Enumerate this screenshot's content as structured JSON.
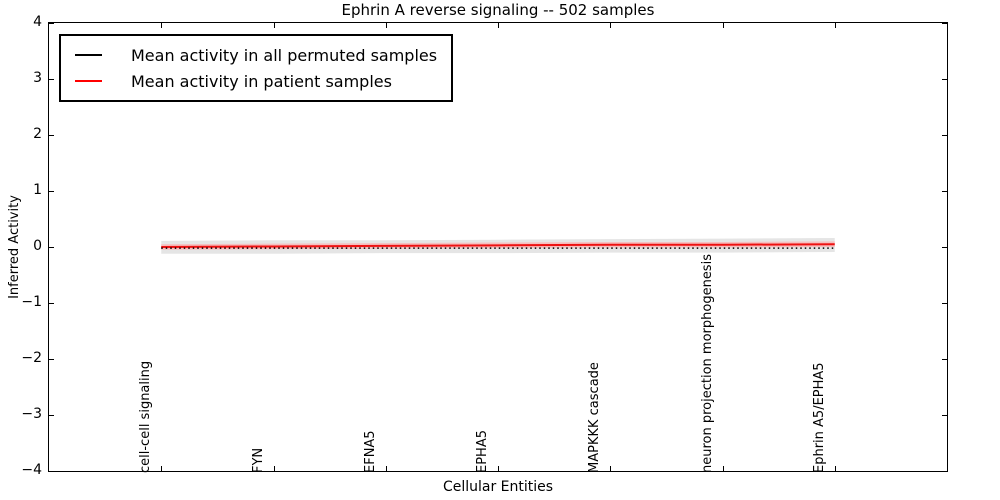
{
  "title": "Ephrin A  reverse signaling -- 502 samples",
  "legend": {
    "entries": [
      {
        "label": "Mean activity in all permuted samples",
        "color": "#000000"
      },
      {
        "label": "Mean activity in patient samples",
        "color": "#ff0000"
      }
    ]
  },
  "colors": {
    "axis": "#000000",
    "permuted_line": "#000000",
    "patient_line": "#ee1111",
    "permuted_band": "#e5e5e5",
    "patient_band": "#f5bfbf",
    "background": "#ffffff"
  },
  "chart_data": {
    "type": "line",
    "title": "Ephrin A  reverse signaling -- 502 samples",
    "xlabel": "Cellular Entities",
    "ylabel": "Inferred Activity",
    "categories": [
      "cell-cell signaling",
      "FYN",
      "EFNA5",
      "EPHA5",
      "MAPKKK cascade",
      "neuron projection morphogenesis",
      "Ephrin A5/EPHA5"
    ],
    "x": [
      0,
      1,
      2,
      3,
      4,
      5,
      6
    ],
    "xlim": [
      -1,
      7
    ],
    "ylim": [
      -4,
      4
    ],
    "yticks": [
      4,
      3,
      2,
      1,
      0,
      -1,
      -2,
      -3,
      -4
    ],
    "grid": false,
    "legend_position": "upper-left",
    "series": [
      {
        "name": "Mean activity in all permuted samples",
        "style": "dotted",
        "values": [
          -0.02,
          -0.02,
          -0.02,
          -0.02,
          -0.02,
          -0.02,
          -0.02
        ]
      },
      {
        "name": "Mean activity in patient samples",
        "style": "solid",
        "values": [
          0.0,
          0.01,
          0.02,
          0.03,
          0.04,
          0.04,
          0.05
        ]
      }
    ],
    "bands": [
      {
        "name": "permuted samples range",
        "upper": [
          0.11,
          0.12,
          0.12,
          0.13,
          0.14,
          0.15,
          0.16
        ],
        "lower": [
          -0.12,
          -0.12,
          -0.11,
          -0.11,
          -0.1,
          -0.1,
          -0.09
        ]
      },
      {
        "name": "patient samples range",
        "upper": [
          0.05,
          0.06,
          0.07,
          0.08,
          0.09,
          0.09,
          0.1
        ],
        "lower": [
          -0.05,
          -0.04,
          -0.03,
          -0.02,
          -0.01,
          -0.01,
          0.0
        ]
      }
    ]
  }
}
